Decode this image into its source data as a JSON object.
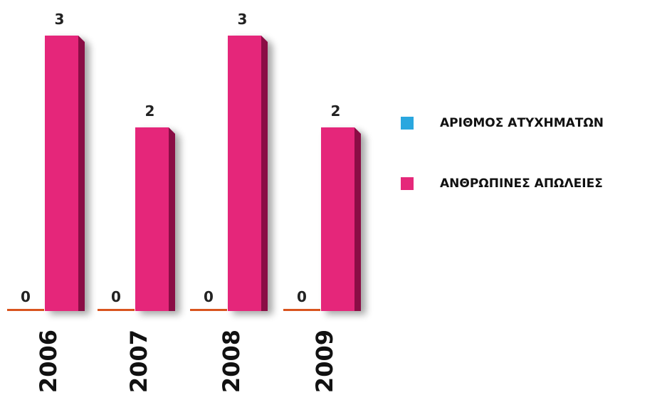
{
  "chart_data": {
    "type": "bar",
    "categories": [
      "2006",
      "2007",
      "2008",
      "2009"
    ],
    "series": [
      {
        "name": "ΑΡΙΘΜΟΣ ΑΤΥΧΗΜΑΤΩΝ",
        "values": [
          0,
          0,
          0,
          0
        ],
        "color": "#2aa7df",
        "baseline_color": "#d9541e"
      },
      {
        "name": "ΑΝΘΡΩΠΙΝΕΣ ΑΠΩΛΕΙΕΣ",
        "values": [
          3,
          2,
          3,
          2
        ],
        "color": "#e5287a",
        "side_color": "#8a0b45"
      }
    ],
    "ylim": [
      0,
      3
    ],
    "grid": false,
    "legend_position": "right"
  }
}
